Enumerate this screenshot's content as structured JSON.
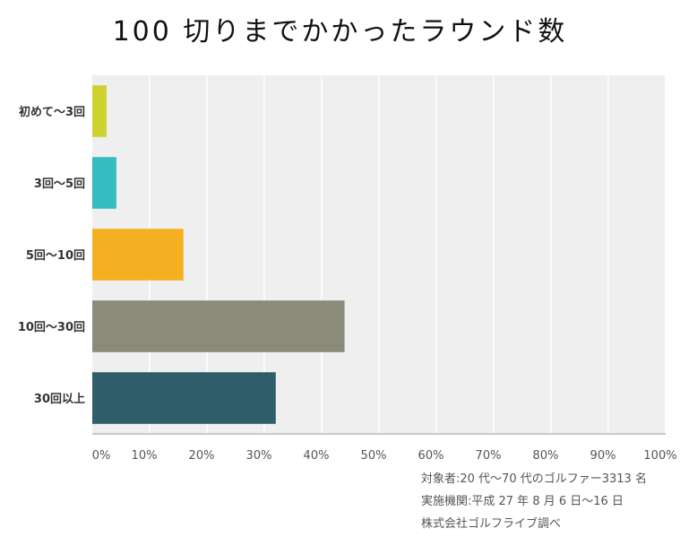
{
  "chart_data": {
    "type": "bar",
    "orientation": "horizontal",
    "title": "100 切りまでかかったラウンド数",
    "categories": [
      "初めて〜3回",
      "3回〜5回",
      "5回〜10回",
      "10回〜30回",
      "30回以上"
    ],
    "values": [
      2.5,
      4.2,
      15.9,
      44.0,
      32.0
    ],
    "colors": [
      "#cdd22f",
      "#33bdbe",
      "#f5b021",
      "#8a8b7b",
      "#2f5e6a"
    ],
    "xlim": [
      0,
      100
    ],
    "xticks": [
      "0%",
      "10%",
      "20%",
      "30%",
      "40%",
      "50%",
      "60%",
      "70%",
      "80%",
      "90%",
      "100%"
    ],
    "grid": true,
    "xlabel": "",
    "ylabel": ""
  },
  "source": {
    "line1": "対象者:20 代〜70 代のゴルファー3313 名",
    "line2": "実施機関:平成 27 年 8 月 6 日〜16 日",
    "line3": "株式会社ゴルフライブ調べ"
  },
  "colors": {
    "plot_bg": "#efefef",
    "grid": "#ffffff",
    "axis": "#c8c8c8"
  }
}
